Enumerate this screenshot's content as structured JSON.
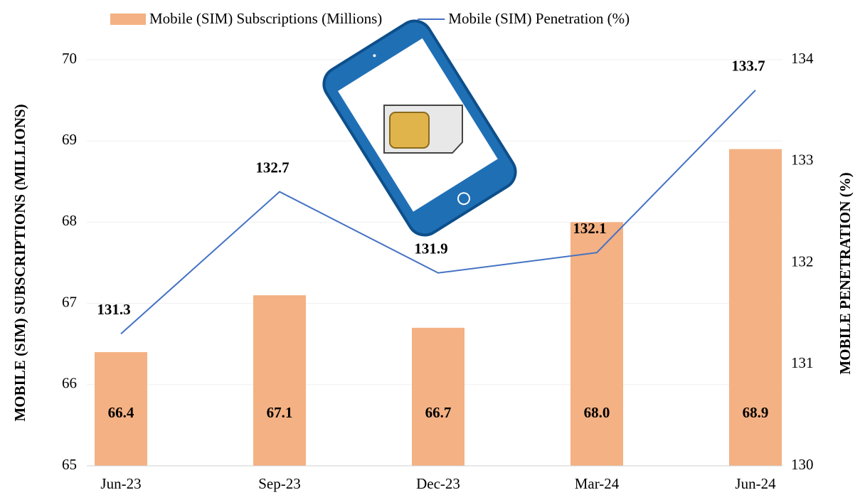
{
  "chart_data": {
    "type": "bar",
    "categories": [
      "Jun-23",
      "Sep-23",
      "Dec-23",
      "Mar-24",
      "Jun-24"
    ],
    "series": [
      {
        "name": "Mobile (SIM) Subscriptions (Millions)",
        "type": "bar",
        "color": "#f4b183",
        "axis": "y",
        "values": [
          66.4,
          67.1,
          66.7,
          68.0,
          68.9
        ],
        "value_labels": [
          "66.4",
          "67.1",
          "66.7",
          "68.0",
          "68.9"
        ]
      },
      {
        "name": "Mobile (SIM) Penetration (%)",
        "type": "line",
        "color": "#4472c4",
        "axis": "y2",
        "values": [
          131.3,
          132.7,
          131.9,
          132.1,
          133.7
        ]
      }
    ],
    "ylabel": "MOBILE (SIM) SUBSCRIPTIONS (MILLIONS)",
    "y2label": "MOBILE PENETRATION (%)",
    "ylim": [
      65,
      70
    ],
    "yticks": [
      65,
      66,
      67,
      68,
      69,
      70
    ],
    "y2lim": [
      130,
      134
    ],
    "y2ticks": [
      130,
      131,
      132,
      133,
      134
    ],
    "grid": true
  }
}
